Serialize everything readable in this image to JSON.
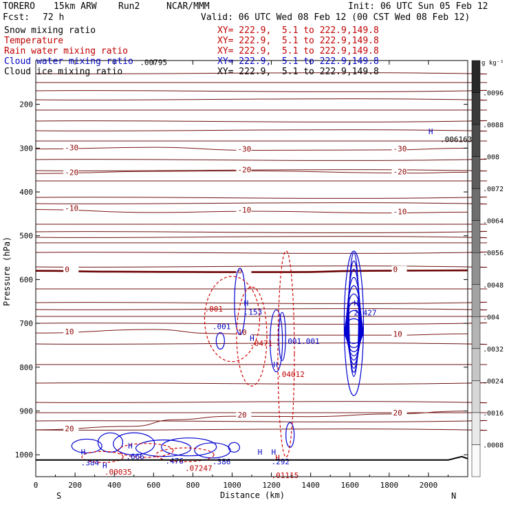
{
  "header": {
    "model": "TORERO",
    "resolution": "15km ARW",
    "run": "Run2",
    "org": "NCAR/MMM",
    "init": "Init: 06 UTC Sun 05 Feb 12",
    "fcst_label": "Fcst:",
    "fcst_value": "72 h",
    "valid": "Valid: 06 UTC Wed 08 Feb 12 (00 CST Wed 08 Feb 12)"
  },
  "fields": [
    {
      "name": "Snow mixing ratio",
      "color": "#000000",
      "xy": "XY= 222.9,  5.1 to 222.9,149.8"
    },
    {
      "name": "Temperature",
      "color": "#c00000",
      "xy": "XY= 222.9,  5.1 to 222.9,149.8"
    },
    {
      "name": "Rain water mixing ratio",
      "color": "#c00000",
      "xy": "XY= 222.9,  5.1 to 222.9,149.8"
    },
    {
      "name": "Cloud water mixing ratio",
      "color": "#0000c0",
      "xy": "XY= 222.9,  5.1 to 222.9,149.8"
    },
    {
      "name": "Cloud ice mixing ratio",
      "color": "#000000",
      "xy": "XY= 222.9,  5.1 to 222.9,149.8"
    }
  ],
  "chart_data": {
    "type": "contour_cross_section",
    "xlabel": "Distance (km)",
    "ylabel": "Pressure (hPa)",
    "xlim": [
      0,
      2200
    ],
    "ylim": [
      1050,
      100
    ],
    "xticks": [
      "0",
      "200",
      "400",
      "600",
      "800",
      "1000",
      "1200",
      "1400",
      "1600",
      "1800",
      "2000"
    ],
    "yticks": [
      "200",
      "300",
      "400",
      "500",
      "600",
      "700",
      "800",
      "900",
      "1000"
    ],
    "x_end_labels": {
      "left": "S",
      "right": "N"
    },
    "colorbar": {
      "unit": "g kg⁻¹",
      "ticks": [
        ".0096",
        ".0088",
        ".008",
        ".0072",
        ".0064",
        ".0056",
        ".0048",
        ".004",
        ".0032",
        ".0024",
        ".0016",
        ".0008"
      ],
      "values": [
        0.0096,
        0.0088,
        0.008,
        0.0072,
        0.0064,
        0.0056,
        0.0048,
        0.004,
        0.0032,
        0.0024,
        0.0016,
        0.0008
      ]
    },
    "temperature_contours": [
      {
        "label": "-30",
        "points": [
          [
            0,
            302
          ],
          [
            600,
            298
          ],
          [
            1100,
            305
          ],
          [
            1800,
            304
          ],
          [
            2200,
            300
          ]
        ]
      },
      {
        "label": "-20",
        "points": [
          [
            0,
            358
          ],
          [
            600,
            353
          ],
          [
            1100,
            352
          ],
          [
            1900,
            357
          ],
          [
            2200,
            355
          ]
        ]
      },
      {
        "label": "-10",
        "points": [
          [
            0,
            440
          ],
          [
            600,
            447
          ],
          [
            1100,
            444
          ],
          [
            1800,
            448
          ],
          [
            2200,
            446
          ]
        ]
      },
      {
        "label": "0",
        "points": [
          [
            0,
            580
          ],
          [
            400,
            582
          ],
          [
            900,
            583
          ],
          [
            1300,
            583
          ],
          [
            1700,
            580
          ],
          [
            2200,
            579
          ]
        ]
      },
      {
        "label": "10",
        "points": [
          [
            0,
            722
          ],
          [
            600,
            714
          ],
          [
            900,
            723
          ],
          [
            1200,
            727
          ],
          [
            1800,
            727
          ],
          [
            2200,
            724
          ]
        ]
      },
      {
        "label": "20",
        "points": [
          [
            0,
            943
          ],
          [
            500,
            935
          ],
          [
            700,
            920
          ],
          [
            1000,
            912
          ],
          [
            1400,
            913
          ],
          [
            1800,
            907
          ],
          [
            2200,
            900
          ]
        ]
      }
    ],
    "annotations": [
      {
        "text": "H",
        "x": 1220,
        "y": 1012,
        "color": "#c00000"
      },
      {
        "text": ".00795",
        "x": 530,
        "y": 110,
        "color": "#000000"
      },
      {
        "text": ".006163",
        "x": 2060,
        "y": 286,
        "color": "#000000"
      },
      {
        "text": ".153",
        "x": 1060,
        "y": 680,
        "color": "#0000c0"
      },
      {
        "text": ".001",
        "x": 900,
        "y": 713,
        "color": "#0000c0"
      },
      {
        "text": ".001",
        "x": 860,
        "y": 673,
        "color": "#c00000"
      },
      {
        "text": "2.427",
        "x": 1620,
        "y": 682,
        "color": "#0000c0"
      },
      {
        "text": ".0471",
        "x": 1090,
        "y": 752,
        "color": "#c00000"
      },
      {
        "text": ".001.001",
        "x": 1260,
        "y": 747,
        "color": "#0000c0"
      },
      {
        "text": ".04012",
        "x": 1230,
        "y": 822,
        "color": "#c00000"
      },
      {
        "text": ".384",
        "x": 230,
        "y": 1024,
        "color": "#0000c0"
      },
      {
        "text": ".666",
        "x": 460,
        "y": 1010,
        "color": "#0000c0"
      },
      {
        "text": ".476",
        "x": 660,
        "y": 1020,
        "color": "#0000c0"
      },
      {
        "text": ".386",
        "x": 900,
        "y": 1022,
        "color": "#0000c0"
      },
      {
        "text": ".292",
        "x": 1200,
        "y": 1022,
        "color": "#0000c0"
      },
      {
        "text": ".00035",
        "x": 350,
        "y": 1045,
        "color": "#c00000"
      },
      {
        "text": ".01115",
        "x": 1200,
        "y": 1053,
        "color": "#c00000"
      },
      {
        "text": ".07247",
        "x": 760,
        "y": 1037,
        "color": "#c00000"
      }
    ]
  }
}
